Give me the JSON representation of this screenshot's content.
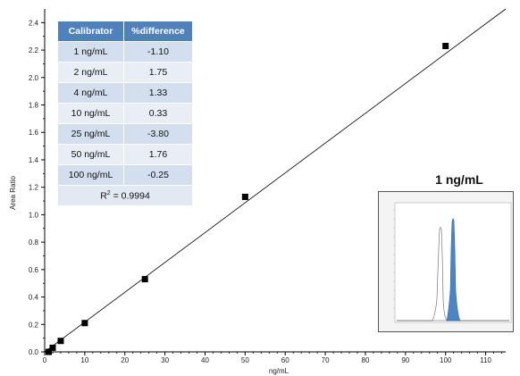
{
  "chart_data": {
    "type": "scatter",
    "xlabel": "ng/mL",
    "ylabel": "Area Ratio",
    "xlim": [
      0,
      115
    ],
    "ylim": [
      0,
      2.5
    ],
    "x_ticks": [
      0,
      10,
      20,
      30,
      40,
      50,
      60,
      70,
      80,
      90,
      100,
      110
    ],
    "y_ticks": [
      0.0,
      0.2,
      0.4,
      0.6,
      0.8,
      1.0,
      1.2,
      1.4,
      1.6,
      1.8,
      2.0,
      2.2,
      2.4
    ],
    "points": [
      {
        "x": 1,
        "y": 0.0
      },
      {
        "x": 2,
        "y": 0.03
      },
      {
        "x": 4,
        "y": 0.08
      },
      {
        "x": 10,
        "y": 0.21
      },
      {
        "x": 25,
        "y": 0.53
      },
      {
        "x": 50,
        "y": 1.13
      },
      {
        "x": 100,
        "y": 2.23
      }
    ],
    "fit_line": {
      "x": [
        0,
        115
      ],
      "y": [
        -0.02,
        2.56
      ]
    },
    "grid": false,
    "marker_color": "#000000",
    "line_color": "#000000"
  },
  "table": {
    "headers": [
      "Calibrator",
      "%difference"
    ],
    "rows": [
      [
        "1 ng/mL",
        "-1.10"
      ],
      [
        "2 ng/mL",
        "1.75"
      ],
      [
        "4 ng/mL",
        "1.33"
      ],
      [
        "10 ng/mL",
        "0.33"
      ],
      [
        "25 ng/mL",
        "-3.80"
      ],
      [
        "50 ng/mL",
        "1.76"
      ],
      [
        "100 ng/mL",
        "-0.25"
      ]
    ],
    "r2_label": "R",
    "r2_sup": "2",
    "r2_value": " = 0.9994",
    "header_color": "#4f81bd"
  },
  "inset": {
    "title": "1 ng/mL",
    "fill_color": "#4a86c5"
  }
}
